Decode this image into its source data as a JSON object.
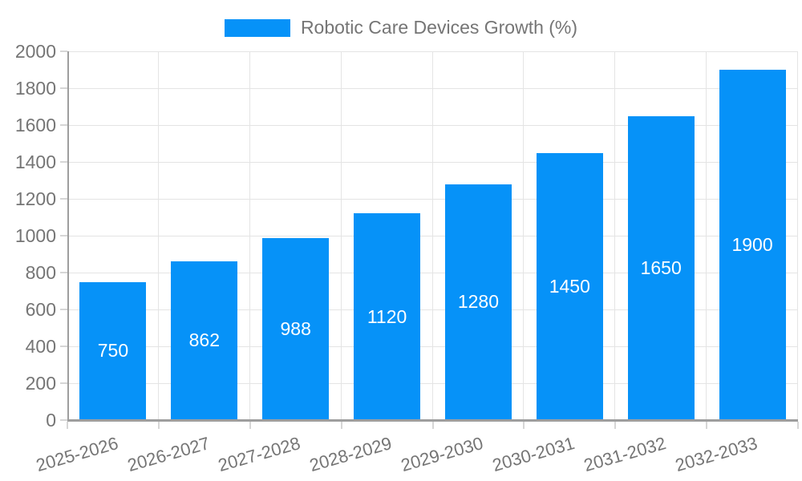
{
  "chart_data": {
    "type": "bar",
    "title": "Robotic Care Devices Growth (%)",
    "categories": [
      "2025-2026",
      "2026-2027",
      "2027-2028",
      "2028-2029",
      "2029-2030",
      "2030-2031",
      "2031-2032",
      "2032-2033"
    ],
    "values": [
      750,
      862,
      988,
      1120,
      1280,
      1450,
      1650,
      1900
    ],
    "xlabel": "",
    "ylabel": "",
    "ylim": [
      0,
      2000
    ],
    "yticks": [
      0,
      200,
      400,
      600,
      800,
      1000,
      1200,
      1400,
      1600,
      1800,
      2000
    ],
    "grid": true,
    "legend_position": "top-center",
    "value_labels": "centered-in-bar"
  },
  "colors": {
    "bar": "#0692f8",
    "grid": "#e4e4e4",
    "axis": "#9e9e9e",
    "tick": "#d6d6d6",
    "text": "#757575",
    "value_label": "#ffffff",
    "background": "#ffffff"
  }
}
